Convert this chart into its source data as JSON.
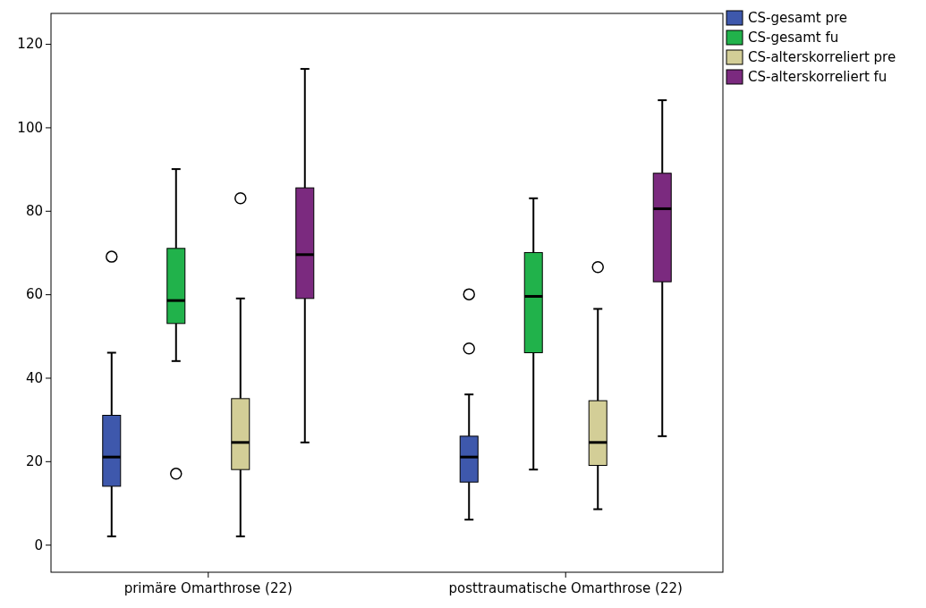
{
  "chart_data": {
    "type": "box",
    "categories": [
      "primäre Omarthrose (22)",
      "posttraumatische Omarthrose (22)"
    ],
    "ylim": [
      -6.6,
      127.3
    ],
    "yticks": [
      0,
      20,
      40,
      60,
      80,
      100,
      120
    ],
    "grid": false,
    "legend": "top right",
    "series": [
      {
        "name": "CS-gesamt pre",
        "color": "#3e58ac",
        "boxes": [
          {
            "low": 2,
            "q1": 14,
            "median": 21,
            "q3": 31,
            "high": 46,
            "outliers": [
              69
            ]
          },
          {
            "low": 6,
            "q1": 15,
            "median": 21,
            "q3": 26,
            "high": 36,
            "outliers": [
              47,
              60
            ]
          }
        ]
      },
      {
        "name": "CS-gesamt fu",
        "color": "#21b24b",
        "boxes": [
          {
            "low": 44,
            "q1": 53,
            "median": 58.5,
            "q3": 71,
            "high": 90,
            "outliers": [
              17
            ]
          },
          {
            "low": 18,
            "q1": 46,
            "median": 59.5,
            "q3": 70,
            "high": 83
          }
        ]
      },
      {
        "name": "CS-alterskorreliert pre",
        "color": "#d3ce97",
        "boxes": [
          {
            "low": 2,
            "q1": 18,
            "median": 24.5,
            "q3": 35,
            "high": 59,
            "outliers": [
              83
            ]
          },
          {
            "low": 8.5,
            "q1": 19,
            "median": 24.5,
            "q3": 34.5,
            "high": 56.5,
            "outliers": [
              66.5
            ]
          }
        ]
      },
      {
        "name": "CS-alterskorreliert fu",
        "color": "#7b2a7f",
        "boxes": [
          {
            "low": 24.5,
            "q1": 59,
            "median": 69.5,
            "q3": 85.5,
            "high": 114
          },
          {
            "low": 26,
            "q1": 63,
            "median": 80.5,
            "q3": 89,
            "high": 106.5
          }
        ]
      }
    ]
  }
}
